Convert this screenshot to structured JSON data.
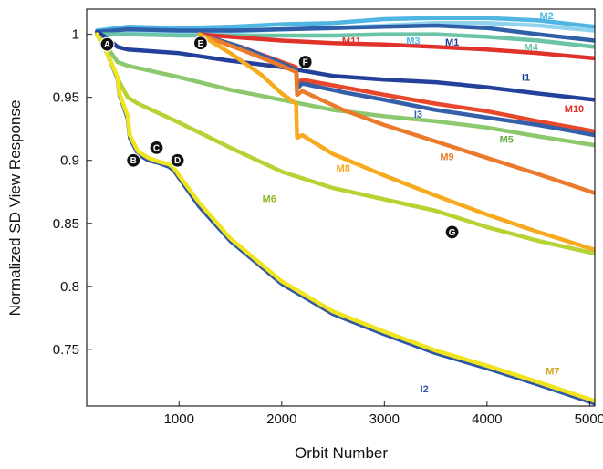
{
  "chart_data": {
    "type": "line",
    "xlabel": "Orbit Number",
    "ylabel": "Normalized SD View Response",
    "xlim": [
      100,
      5050
    ],
    "ylim": [
      0.705,
      1.02
    ],
    "xticks": [
      "1000",
      "2000",
      "3000",
      "4000",
      "5000"
    ],
    "yticks": [
      "0.75",
      "0.8",
      "0.85",
      "0.9",
      "0.95",
      "1"
    ],
    "grid": false,
    "series": [
      {
        "name": "M2",
        "color": "#4FB6E3",
        "points": [
          [
            200,
            1.003
          ],
          [
            500,
            1.006
          ],
          [
            1000,
            1.005
          ],
          [
            1500,
            1.006
          ],
          [
            2000,
            1.008
          ],
          [
            2500,
            1.009
          ],
          [
            3000,
            1.012
          ],
          [
            3500,
            1.013
          ],
          [
            4000,
            1.013
          ],
          [
            4500,
            1.011
          ],
          [
            5050,
            1.006
          ]
        ]
      },
      {
        "name": "M3",
        "color": "#8FD3EE",
        "points": [
          [
            200,
            1.0
          ],
          [
            500,
            1.002
          ],
          [
            1000,
            1.001
          ],
          [
            1500,
            1.002
          ],
          [
            2000,
            1.004
          ],
          [
            2500,
            1.005
          ],
          [
            3000,
            1.007
          ],
          [
            3500,
            1.009
          ],
          [
            4000,
            1.009
          ],
          [
            4500,
            1.007
          ],
          [
            5050,
            1.003
          ]
        ]
      },
      {
        "name": "M1",
        "color": "#2F5FA8",
        "points": [
          [
            200,
            1.002
          ],
          [
            500,
            1.004
          ],
          [
            1000,
            1.003
          ],
          [
            1500,
            1.003
          ],
          [
            2000,
            1.004
          ],
          [
            2500,
            1.005
          ],
          [
            3000,
            1.006
          ],
          [
            3500,
            1.007
          ],
          [
            4000,
            1.005
          ],
          [
            4500,
            1.0
          ],
          [
            5050,
            0.995
          ]
        ]
      },
      {
        "name": "M4",
        "color": "#6CC4A6",
        "points": [
          [
            200,
            1.0
          ],
          [
            500,
            1.0
          ],
          [
            1000,
            0.999
          ],
          [
            1500,
            0.999
          ],
          [
            2000,
            0.999
          ],
          [
            2500,
            0.999
          ],
          [
            3000,
            1.0
          ],
          [
            3500,
            1.0
          ],
          [
            4000,
            0.998
          ],
          [
            4500,
            0.995
          ],
          [
            5050,
            0.99
          ]
        ]
      },
      {
        "name": "M11",
        "color": "#E0312A",
        "points": [
          [
            1200,
            1.0
          ],
          [
            1500,
            0.998
          ],
          [
            2000,
            0.995
          ],
          [
            2500,
            0.993
          ],
          [
            3000,
            0.992
          ],
          [
            3500,
            0.99
          ],
          [
            4000,
            0.988
          ],
          [
            4500,
            0.985
          ],
          [
            5050,
            0.981
          ]
        ]
      },
      {
        "name": "I1",
        "color": "#23409A",
        "points": [
          [
            200,
            1.002
          ],
          [
            300,
            0.997
          ],
          [
            400,
            0.99
          ],
          [
            500,
            0.988
          ],
          [
            1000,
            0.985
          ],
          [
            1500,
            0.979
          ],
          [
            2000,
            0.974
          ],
          [
            2500,
            0.967
          ],
          [
            3000,
            0.964
          ],
          [
            3500,
            0.962
          ],
          [
            4000,
            0.958
          ],
          [
            4500,
            0.953
          ],
          [
            5050,
            0.948
          ]
        ]
      },
      {
        "name": "M10",
        "color": "#E8472C",
        "points": [
          [
            1200,
            1.0
          ],
          [
            1600,
            0.99
          ],
          [
            2000,
            0.978
          ],
          [
            2140,
            0.974
          ],
          [
            2150,
            0.961
          ],
          [
            2200,
            0.964
          ],
          [
            2600,
            0.958
          ],
          [
            3000,
            0.952
          ],
          [
            3500,
            0.945
          ],
          [
            4000,
            0.939
          ],
          [
            4500,
            0.931
          ],
          [
            5050,
            0.923
          ]
        ]
      },
      {
        "name": "I3",
        "color": "#355FA8",
        "points": [
          [
            1200,
            1.0
          ],
          [
            1600,
            0.99
          ],
          [
            2000,
            0.977
          ],
          [
            2140,
            0.972
          ],
          [
            2150,
            0.957
          ],
          [
            2200,
            0.961
          ],
          [
            2600,
            0.954
          ],
          [
            3000,
            0.948
          ],
          [
            3500,
            0.94
          ],
          [
            4000,
            0.934
          ],
          [
            4500,
            0.928
          ],
          [
            5050,
            0.92
          ]
        ]
      },
      {
        "name": "M5",
        "color": "#8CC86E",
        "points": [
          [
            200,
            1.0
          ],
          [
            300,
            0.99
          ],
          [
            400,
            0.978
          ],
          [
            500,
            0.975
          ],
          [
            1000,
            0.966
          ],
          [
            1500,
            0.956
          ],
          [
            2000,
            0.948
          ],
          [
            2500,
            0.94
          ],
          [
            3000,
            0.935
          ],
          [
            3500,
            0.931
          ],
          [
            4000,
            0.926
          ],
          [
            4500,
            0.919
          ],
          [
            5050,
            0.912
          ]
        ]
      },
      {
        "name": "M9",
        "color": "#EA7B2C",
        "points": [
          [
            1200,
            1.0
          ],
          [
            1600,
            0.988
          ],
          [
            2000,
            0.975
          ],
          [
            2140,
            0.97
          ],
          [
            2150,
            0.952
          ],
          [
            2200,
            0.955
          ],
          [
            2600,
            0.94
          ],
          [
            3000,
            0.928
          ],
          [
            3500,
            0.915
          ],
          [
            4000,
            0.902
          ],
          [
            4500,
            0.889
          ],
          [
            5050,
            0.874
          ]
        ]
      },
      {
        "name": "M8",
        "color": "#F7AA1E",
        "points": [
          [
            1200,
            1.0
          ],
          [
            1500,
            0.985
          ],
          [
            1800,
            0.968
          ],
          [
            2000,
            0.953
          ],
          [
            2140,
            0.945
          ],
          [
            2150,
            0.918
          ],
          [
            2200,
            0.92
          ],
          [
            2500,
            0.905
          ],
          [
            3000,
            0.888
          ],
          [
            3500,
            0.872
          ],
          [
            4000,
            0.857
          ],
          [
            4500,
            0.843
          ],
          [
            5050,
            0.829
          ]
        ]
      },
      {
        "name": "M6",
        "color": "#B5D334",
        "points": [
          [
            200,
            1.0
          ],
          [
            300,
            0.985
          ],
          [
            400,
            0.965
          ],
          [
            500,
            0.95
          ],
          [
            600,
            0.945
          ],
          [
            1000,
            0.93
          ],
          [
            1500,
            0.91
          ],
          [
            2000,
            0.891
          ],
          [
            2500,
            0.878
          ],
          [
            3000,
            0.869
          ],
          [
            3500,
            0.86
          ],
          [
            4000,
            0.847
          ],
          [
            4500,
            0.836
          ],
          [
            5050,
            0.826
          ]
        ]
      },
      {
        "name": "I2",
        "color": "#2E56A6",
        "points": [
          [
            200,
            1.0
          ],
          [
            300,
            0.985
          ],
          [
            400,
            0.965
          ],
          [
            420,
            0.952
          ],
          [
            500,
            0.933
          ],
          [
            520,
            0.918
          ],
          [
            600,
            0.905
          ],
          [
            700,
            0.9
          ],
          [
            800,
            0.898
          ],
          [
            900,
            0.895
          ],
          [
            950,
            0.892
          ],
          [
            1000,
            0.886
          ],
          [
            1200,
            0.863
          ],
          [
            1500,
            0.836
          ],
          [
            2000,
            0.802
          ],
          [
            2500,
            0.778
          ],
          [
            3000,
            0.762
          ],
          [
            3500,
            0.747
          ],
          [
            4000,
            0.735
          ],
          [
            4500,
            0.722
          ],
          [
            5050,
            0.707
          ]
        ]
      },
      {
        "name": "M7",
        "color": "#F0E41E",
        "points": [
          [
            200,
            1.0
          ],
          [
            300,
            0.985
          ],
          [
            400,
            0.966
          ],
          [
            420,
            0.953
          ],
          [
            500,
            0.935
          ],
          [
            520,
            0.92
          ],
          [
            600,
            0.907
          ],
          [
            700,
            0.902
          ],
          [
            800,
            0.899
          ],
          [
            900,
            0.897
          ],
          [
            950,
            0.894
          ],
          [
            1000,
            0.888
          ],
          [
            1200,
            0.866
          ],
          [
            1500,
            0.838
          ],
          [
            2000,
            0.804
          ],
          [
            2500,
            0.78
          ],
          [
            3000,
            0.764
          ],
          [
            3500,
            0.749
          ],
          [
            4000,
            0.737
          ],
          [
            4500,
            0.724
          ],
          [
            5050,
            0.709
          ]
        ]
      }
    ],
    "labels": [
      {
        "text": "M2",
        "x": 4580,
        "y": 1.012,
        "color": "#4FB6E3"
      },
      {
        "text": "M3",
        "x": 3280,
        "y": 0.992,
        "color": "#4FB6E3"
      },
      {
        "text": "M1",
        "x": 3660,
        "y": 0.991,
        "color": "#23409A"
      },
      {
        "text": "M4",
        "x": 4430,
        "y": 0.987,
        "color": "#6CC4A6"
      },
      {
        "text": "M11",
        "x": 2680,
        "y": 0.992,
        "color": "#E0312A"
      },
      {
        "text": "I1",
        "x": 4380,
        "y": 0.963,
        "color": "#23409A"
      },
      {
        "text": "M10",
        "x": 4850,
        "y": 0.938,
        "color": "#E0312A"
      },
      {
        "text": "I3",
        "x": 3330,
        "y": 0.934,
        "color": "#355FA8"
      },
      {
        "text": "M5",
        "x": 4190,
        "y": 0.914,
        "color": "#6CB24A"
      },
      {
        "text": "M9",
        "x": 3610,
        "y": 0.9,
        "color": "#EA7B2C"
      },
      {
        "text": "M8",
        "x": 2600,
        "y": 0.891,
        "color": "#F7AA1E"
      },
      {
        "text": "M6",
        "x": 1880,
        "y": 0.867,
        "color": "#8DB82A"
      },
      {
        "text": "I2",
        "x": 3390,
        "y": 0.716,
        "color": "#2E56A6"
      },
      {
        "text": "M7",
        "x": 4640,
        "y": 0.73,
        "color": "#D9A21E"
      }
    ],
    "markers": [
      {
        "text": "A",
        "x": 300,
        "y": 0.992
      },
      {
        "text": "B",
        "x": 555,
        "y": 0.9
      },
      {
        "text": "C",
        "x": 780,
        "y": 0.91
      },
      {
        "text": "D",
        "x": 985,
        "y": 0.9
      },
      {
        "text": "E",
        "x": 1210,
        "y": 0.993
      },
      {
        "text": "F",
        "x": 2230,
        "y": 0.978
      },
      {
        "text": "G",
        "x": 3660,
        "y": 0.843
      }
    ]
  }
}
